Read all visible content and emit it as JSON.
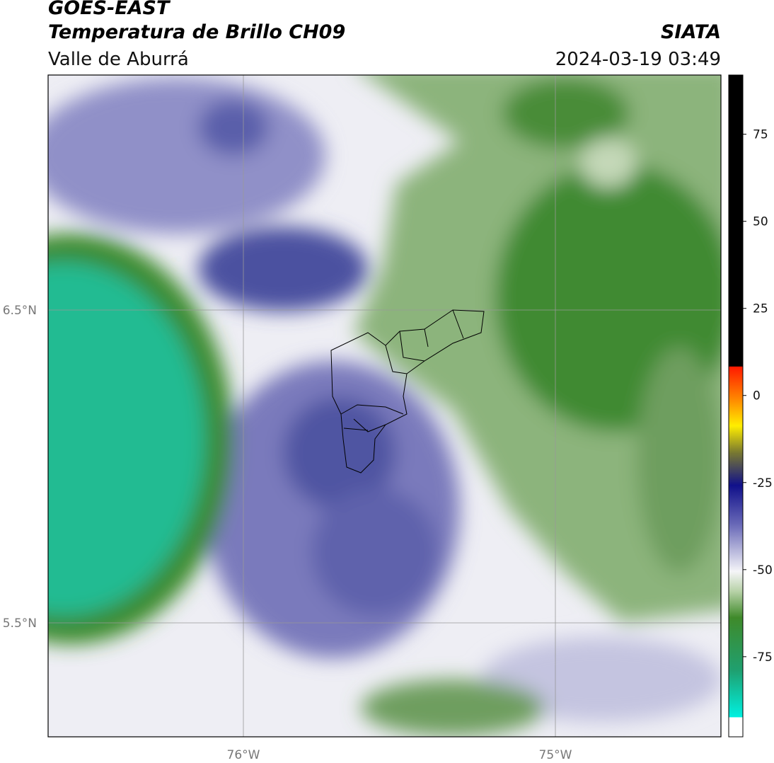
{
  "header": {
    "title": "GOES-EAST",
    "subtitle": "Temperatura de Brillo CH09",
    "region": "Valle de Aburrá",
    "source": "SIATA",
    "datetime": "2024-03-19 03:49"
  },
  "map": {
    "lat_labels": [
      "6.5°N",
      "5.5°N"
    ],
    "lon_labels": [
      "76°W",
      "75°W"
    ]
  },
  "colorbar": {
    "lim": [
      -98,
      92
    ],
    "ticks": [
      75,
      50,
      25,
      0,
      -25,
      -50,
      -75
    ]
  }
}
